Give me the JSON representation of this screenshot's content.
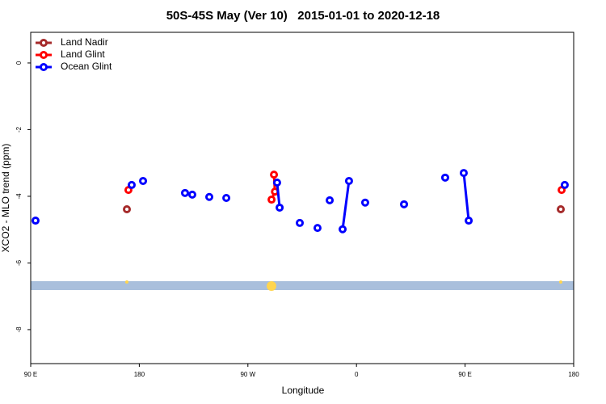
{
  "chart_data": {
    "type": "line",
    "title": "50S-45S May (Ver 10)   2015-01-01 to 2020-12-18",
    "x_label": "Longitude",
    "y_label": "XCO2 - MLO trend (ppm)",
    "xlim": [
      90,
      540
    ],
    "ylim": [
      -9.02,
      0.92
    ],
    "xticks": [
      {
        "value": 90,
        "label": "90 E"
      },
      180,
      {
        "value": 270,
        "label": "90 W"
      },
      {
        "value": 360,
        "label": "0"
      },
      {
        "value": 450,
        "label": "90 E"
      },
      {
        "value": 540,
        "label": "180"
      }
    ],
    "yticks": [
      0,
      -2,
      -4,
      -6,
      -8
    ],
    "legend": "top-left",
    "series": [
      {
        "name": "Land Nadir",
        "color": "#a52a2a",
        "x": [
          169.7,
          null,
          529.3
        ],
        "values": [
          -4.39,
          null,
          -4.39
        ]
      },
      {
        "name": "Land Glint",
        "color": "#ff0000",
        "x": [
          171.0,
          null,
          291.6,
          292.4,
          289.6,
          null,
          530.0
        ],
        "values": [
          -3.81,
          null,
          -3.35,
          -3.86,
          -4.1,
          null,
          -3.81
        ]
      },
      {
        "name": "Ocean Glint",
        "color": "#0000ff",
        "x": [
          94.0,
          null,
          173.7,
          null,
          183.1,
          null,
          217.9,
          null,
          223.9,
          null,
          238.0,
          null,
          252.1,
          null,
          294.2,
          296.3,
          null,
          313.0,
          null,
          327.7,
          null,
          337.8,
          null,
          348.5,
          353.8,
          null,
          367.2,
          null,
          399.4,
          null,
          433.5,
          null,
          448.9,
          453.0,
          null,
          532.6
        ],
        "values": [
          -4.73,
          null,
          -3.66,
          null,
          -3.54,
          null,
          -3.9,
          null,
          -3.95,
          null,
          -4.02,
          null,
          -4.05,
          null,
          -3.59,
          -4.34,
          null,
          -4.8,
          null,
          -4.95,
          null,
          -4.12,
          null,
          -4.99,
          -3.54,
          null,
          -4.19,
          null,
          -4.24,
          null,
          -3.44,
          null,
          -3.3,
          -4.73,
          null,
          -3.66
        ]
      }
    ]
  }
}
